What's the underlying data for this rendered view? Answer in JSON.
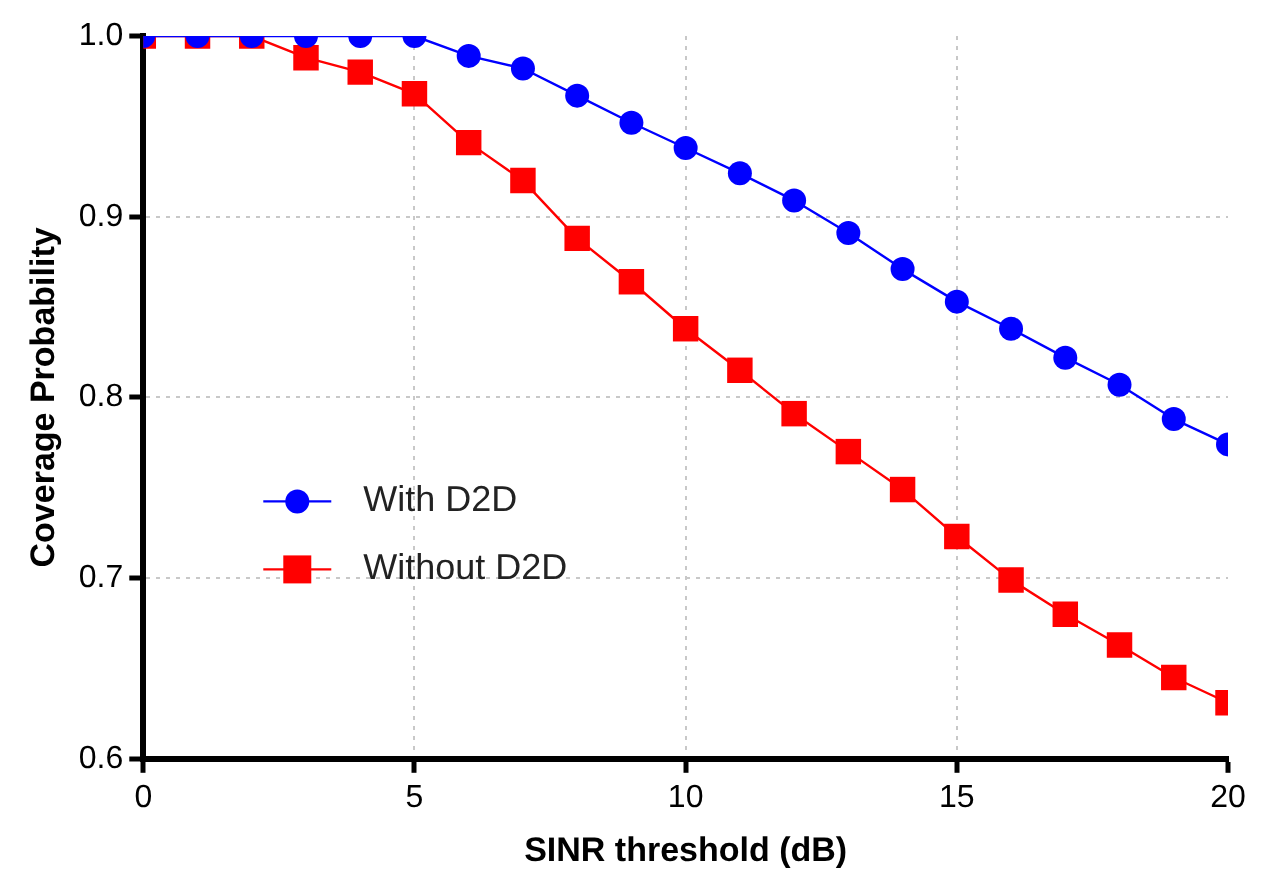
{
  "chart_data": {
    "type": "line",
    "xlabel": "SINR threshold (dB)",
    "ylabel": "Coverage Probability",
    "x": [
      0,
      1,
      2,
      3,
      4,
      5,
      6,
      7,
      8,
      9,
      10,
      11,
      12,
      13,
      14,
      15,
      16,
      17,
      18,
      19,
      20
    ],
    "series": [
      {
        "name": "With D2D",
        "color": "#0000ff",
        "marker": "circle",
        "values": [
          1.0,
          1.0,
          1.0,
          1.0,
          1.0,
          1.0,
          0.989,
          0.982,
          0.967,
          0.952,
          0.938,
          0.924,
          0.909,
          0.891,
          0.871,
          0.853,
          0.838,
          0.822,
          0.807,
          0.788,
          0.774
        ]
      },
      {
        "name": "Without D2D",
        "color": "#ff0000",
        "marker": "square",
        "values": [
          1.0,
          1.0,
          1.0,
          0.988,
          0.98,
          0.968,
          0.941,
          0.92,
          0.888,
          0.864,
          0.838,
          0.815,
          0.791,
          0.77,
          0.749,
          0.723,
          0.699,
          0.68,
          0.663,
          0.645,
          0.631
        ]
      }
    ],
    "xlim": [
      0,
      20
    ],
    "xticks": [
      0,
      5,
      10,
      15,
      20
    ],
    "ylim": [
      0.6,
      1.0
    ],
    "yticks": [
      0.6,
      0.7,
      0.8,
      0.9,
      {
        "value": 1,
        "label": "1.0"
      }
    ],
    "grid": true,
    "legend": "left",
    "line_style": "solid"
  }
}
